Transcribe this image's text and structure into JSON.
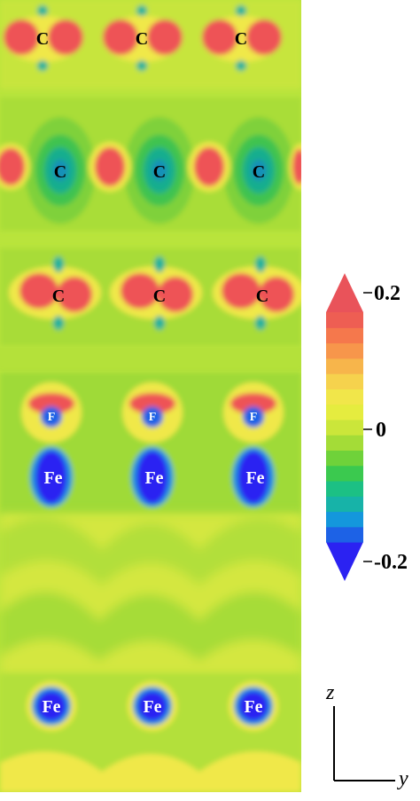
{
  "colorbar": {
    "max_label": "0.2",
    "mid_label": "0",
    "min_label": "-0.2",
    "vmin": -0.2,
    "vmax": 0.2,
    "levels": 17,
    "colors": [
      "#2b22f2",
      "#1d62e6",
      "#1497dc",
      "#17b3a8",
      "#1cc084",
      "#3bc94f",
      "#6fd23a",
      "#a4dc37",
      "#cbe63a",
      "#e5ec3f",
      "#f1e64a",
      "#f6d24d",
      "#f7b54b",
      "#f7964b",
      "#f5784c",
      "#ee5e53",
      "#e9535a"
    ]
  },
  "axes": {
    "vertical": "z",
    "horizontal": "y"
  },
  "atom_labels": {
    "carbon": "C",
    "iron": "Fe",
    "small_iron": "F"
  },
  "colors": {
    "background_field": "#b9e43c",
    "positive": "#ef4f55",
    "negative": "#2546e8",
    "yellow": "#f0ec45"
  }
}
